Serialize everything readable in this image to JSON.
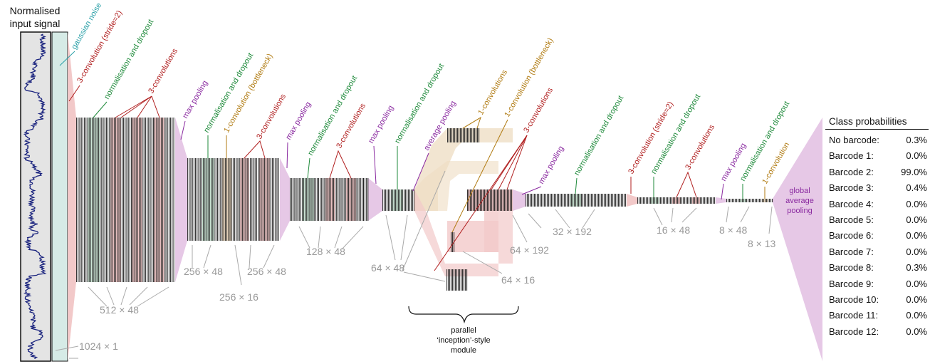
{
  "input": {
    "title_line1": "Normalised",
    "title_line2": "input signal",
    "size": "1024 × 1"
  },
  "layers": {
    "gaussian_noise": "gaussian noise",
    "conv_stride2_a": "3-convolution (stride=2)",
    "norm_dropout_a": "normalisation and dropout",
    "conv3_a": "3-convolutions",
    "conv3_b": "3-convolutions",
    "maxpool_a": "max pooling",
    "norm_dropout_b": "normalisation and dropout",
    "conv1_bottleneck_a": "1-convolution (bottleneck)",
    "conv3_c": "3-convolutions",
    "maxpool_b": "max pooling",
    "norm_dropout_c": "normalisation and dropout",
    "conv3_d": "3-convolutions",
    "maxpool_c": "max pooling",
    "norm_dropout_d": "normalisation and dropout",
    "avgpool": "average pooling",
    "conv1_inc": "1-convolutions",
    "conv1_bottleneck_inc": "1-convolution (bottleneck)",
    "conv3_inc": "3-convolutions",
    "maxpool_d": "max pooling",
    "norm_dropout_e": "normalisation and dropout",
    "conv_stride2_b": "3-convolution (stride=2)",
    "norm_dropout_f": "normalisation and dropout",
    "conv3_e": "3-convolutions",
    "maxpool_e": "max pooling",
    "norm_dropout_g": "normalisation and dropout",
    "conv1_final": "1-convolution",
    "global_avg_line1": "global",
    "global_avg_line2": "average",
    "global_avg_line3": "pooling"
  },
  "sizes": {
    "s512x48": "512 × 48",
    "s256x48a": "256 × 48",
    "s256x16": "256 × 16",
    "s256x48b": "256 × 48",
    "s128x48": "128 × 48",
    "s64x48": "64 × 48",
    "s64x192": "64 × 192",
    "s64x16": "64 × 16",
    "s32x192": "32 × 192",
    "s16x48": "16 × 48",
    "s8x48": "8 × 48",
    "s8x13": "8 × 13"
  },
  "module": {
    "line1": "parallel",
    "line2": "‘inception’-style",
    "line3": "module"
  },
  "probabilities": {
    "title": "Class probabilities",
    "rows": [
      {
        "label": "No barcode:",
        "value": "0.3%"
      },
      {
        "label": "Barcode 1:",
        "value": "0.0%"
      },
      {
        "label": "Barcode 2:",
        "value": "99.0%"
      },
      {
        "label": "Barcode 3:",
        "value": "0.4%"
      },
      {
        "label": "Barcode 4:",
        "value": "0.0%"
      },
      {
        "label": "Barcode 5:",
        "value": "0.0%"
      },
      {
        "label": "Barcode 6:",
        "value": "0.0%"
      },
      {
        "label": "Barcode 7:",
        "value": "0.0%"
      },
      {
        "label": "Barcode 8:",
        "value": "0.3%"
      },
      {
        "label": "Barcode 9:",
        "value": "0.0%"
      },
      {
        "label": "Barcode 10:",
        "value": "0.0%"
      },
      {
        "label": "Barcode 11:",
        "value": "0.0%"
      },
      {
        "label": "Barcode 12:",
        "value": "0.0%"
      }
    ]
  },
  "colors": {
    "conv": "#f2c9c9",
    "norm": "#cfe8d8",
    "bottleneck": "#eedcc2",
    "pool": "#e6c8e6",
    "noise_label": "#2aa0a8",
    "conv_label": "#b01e1e",
    "norm_label": "#1e8a3a",
    "bottleneck_label": "#b07a10",
    "pool_label": "#8a2aa0",
    "size_label": "#999999",
    "signal": "#1a237e"
  }
}
